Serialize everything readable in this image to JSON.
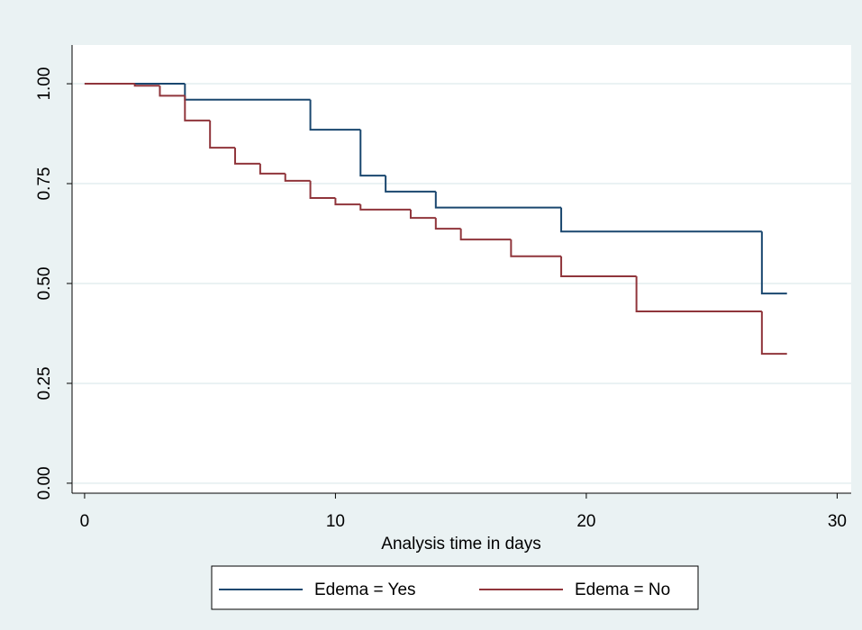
{
  "chart_data": {
    "type": "step",
    "xlabel": "Analysis time in days",
    "xlim": [
      -0.5,
      30.56
    ],
    "ylim": [
      -0.025,
      1.097
    ],
    "xticks": [
      0,
      10,
      20,
      30
    ],
    "yticks": [
      {
        "value": 0,
        "label": "0.00"
      },
      {
        "value": 0.25,
        "label": "0.25"
      },
      {
        "value": 0.5,
        "label": "0.50"
      },
      {
        "value": 0.75,
        "label": "0.75"
      },
      {
        "value": 1,
        "label": "1.00"
      }
    ],
    "grid": true,
    "legend": "bottom",
    "series": [
      {
        "name": "Edema = Yes",
        "color": "#1a476f",
        "x": [
          0,
          4,
          9,
          11,
          12,
          14,
          19,
          27,
          28
        ],
        "values": [
          1,
          0.96,
          0.885,
          0.77,
          0.73,
          0.69,
          0.63,
          0.475,
          0.475
        ]
      },
      {
        "name": "Edema = No",
        "color": "#90353b",
        "x": [
          0,
          2,
          3,
          4,
          5,
          6,
          7,
          8,
          9,
          10,
          11,
          13,
          14,
          15,
          17,
          19,
          22,
          27,
          28
        ],
        "values": [
          1,
          0.995,
          0.97,
          0.908,
          0.84,
          0.8,
          0.775,
          0.757,
          0.714,
          0.698,
          0.685,
          0.664,
          0.637,
          0.61,
          0.568,
          0.518,
          0.43,
          0.324,
          0.324
        ]
      }
    ]
  }
}
